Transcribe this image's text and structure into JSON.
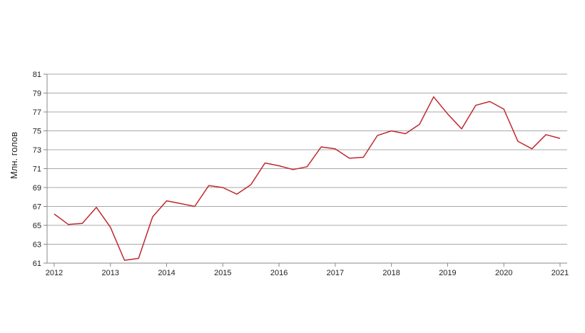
{
  "chart_data": {
    "type": "line",
    "title": "",
    "xlabel": "",
    "ylabel": "Млн. голов",
    "ylim": [
      61,
      81
    ],
    "xlim": [
      2012,
      2021
    ],
    "y_ticks": [
      "61",
      "63",
      "65",
      "67",
      "69",
      "71",
      "73",
      "75",
      "77",
      "79",
      "81"
    ],
    "x_ticks": [
      "2012",
      "2013",
      "2014",
      "2015",
      "2016",
      "2017",
      "2018",
      "2019",
      "2020",
      "2021"
    ],
    "grid": true,
    "legend": "none",
    "line_color": "#c0282d",
    "series": [
      {
        "x": [
          2012.0,
          2012.25,
          2012.5,
          2012.75,
          2013.0,
          2013.25,
          2013.5,
          2013.75,
          2014.0,
          2014.25,
          2014.5,
          2014.75,
          2015.0,
          2015.25,
          2015.5,
          2015.75,
          2016.0,
          2016.25,
          2016.5,
          2016.75,
          2017.0,
          2017.25,
          2017.5,
          2017.75,
          2018.0,
          2018.25,
          2018.5,
          2018.75,
          2019.0,
          2019.25,
          2019.5,
          2019.75,
          2020.0,
          2020.25,
          2020.5,
          2020.75,
          2021.0
        ],
        "values": [
          66.2,
          65.1,
          65.2,
          66.9,
          64.8,
          61.3,
          61.5,
          65.9,
          67.6,
          67.3,
          67.0,
          69.2,
          69.0,
          68.3,
          69.3,
          71.6,
          71.3,
          70.9,
          71.2,
          73.3,
          73.1,
          72.1,
          72.2,
          74.5,
          75.0,
          74.7,
          75.7,
          78.6,
          76.8,
          75.2,
          77.7,
          78.1,
          77.3,
          73.9,
          73.1,
          74.6,
          74.2
        ]
      }
    ]
  }
}
